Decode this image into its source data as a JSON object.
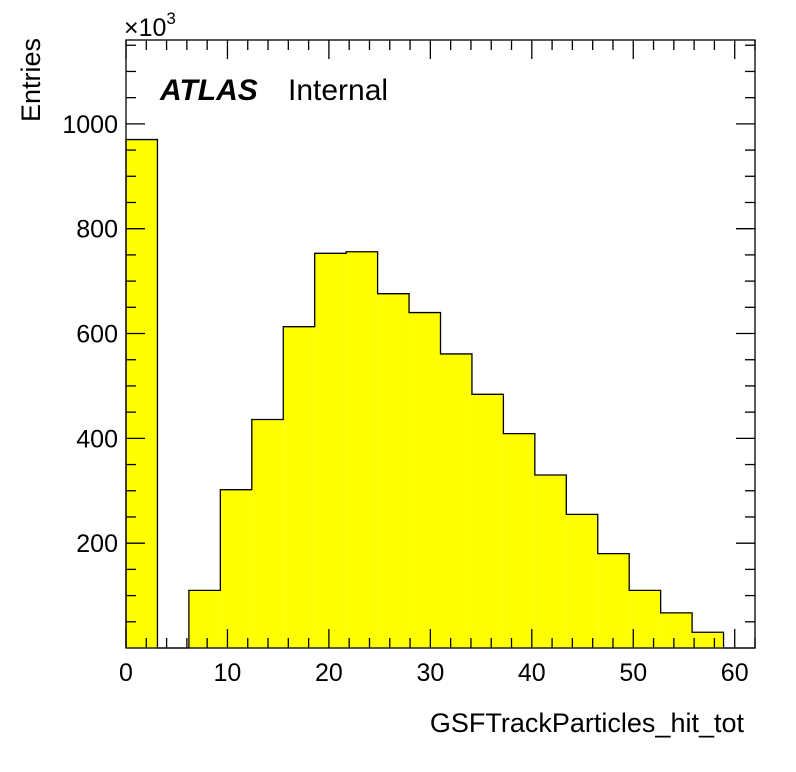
{
  "chart_data": {
    "type": "bar",
    "xlabel": "GSFTrackParticles_hit_tot",
    "ylabel": "Entries",
    "y_multiplier_label": "×10",
    "y_multiplier_exponent": "3",
    "experiment_label": "ATLAS",
    "status_label": "Internal",
    "xlim": [
      0,
      62
    ],
    "ylim": [
      0,
      1160
    ],
    "x_ticks": [
      0,
      10,
      20,
      30,
      40,
      50,
      60
    ],
    "y_ticks": [
      200,
      400,
      600,
      800,
      1000
    ],
    "bin_width": 3.1,
    "fill_color": "#ffff00",
    "edge_color": "#000000",
    "bins": [
      {
        "x_low": 0.0,
        "x_high": 3.1,
        "value": 970
      },
      {
        "x_low": 3.1,
        "x_high": 6.2,
        "value": 0
      },
      {
        "x_low": 6.2,
        "x_high": 9.3,
        "value": 110
      },
      {
        "x_low": 9.3,
        "x_high": 12.4,
        "value": 302
      },
      {
        "x_low": 12.4,
        "x_high": 15.5,
        "value": 436
      },
      {
        "x_low": 15.5,
        "x_high": 18.6,
        "value": 613
      },
      {
        "x_low": 18.6,
        "x_high": 21.7,
        "value": 753
      },
      {
        "x_low": 21.7,
        "x_high": 24.8,
        "value": 756
      },
      {
        "x_low": 24.8,
        "x_high": 27.9,
        "value": 676
      },
      {
        "x_low": 27.9,
        "x_high": 31.0,
        "value": 640
      },
      {
        "x_low": 31.0,
        "x_high": 34.1,
        "value": 561
      },
      {
        "x_low": 34.1,
        "x_high": 37.2,
        "value": 484
      },
      {
        "x_low": 37.2,
        "x_high": 40.3,
        "value": 409
      },
      {
        "x_low": 40.3,
        "x_high": 43.4,
        "value": 330
      },
      {
        "x_low": 43.4,
        "x_high": 46.5,
        "value": 255
      },
      {
        "x_low": 46.5,
        "x_high": 49.6,
        "value": 180
      },
      {
        "x_low": 49.6,
        "x_high": 52.7,
        "value": 110
      },
      {
        "x_low": 52.7,
        "x_high": 55.8,
        "value": 67
      },
      {
        "x_low": 55.8,
        "x_high": 58.9,
        "value": 30
      },
      {
        "x_low": 58.9,
        "x_high": 62.0,
        "value": 0
      }
    ]
  }
}
